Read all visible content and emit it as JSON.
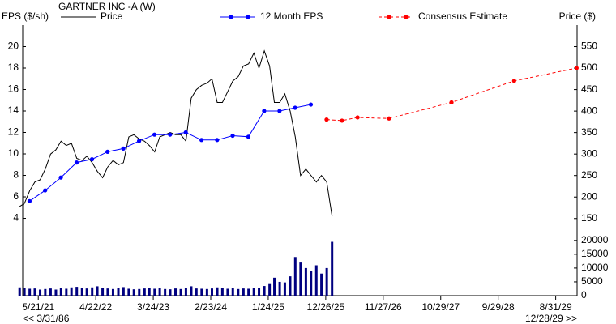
{
  "chart_data": {
    "type": "stock",
    "title": "GARTNER INC -A (W)",
    "y_label": "EPS ($/sh)",
    "y2_label": "Price ($)",
    "start_label": "<< 3/31/86",
    "end_label": "12/28/29 >>",
    "xlim": [
      "2021-02-19",
      "2030-01-03"
    ],
    "xticks": [
      {
        "value": "2021-05-21",
        "label": "5/21/21"
      },
      {
        "value": "2022-04-22",
        "label": "4/22/22"
      },
      {
        "value": "2023-03-24",
        "label": "3/24/23"
      },
      {
        "value": "2024-02-23",
        "label": "2/23/24"
      },
      {
        "value": "2025-01-24",
        "label": "1/24/25"
      },
      {
        "value": "2025-12-26",
        "label": "12/26/25"
      },
      {
        "value": "2026-11-27",
        "label": "11/27/26"
      },
      {
        "value": "2027-10-29",
        "label": "10/29/27"
      },
      {
        "value": "2028-09-29",
        "label": "9/29/28"
      },
      {
        "value": "2029-08-31",
        "label": "8/31/29"
      }
    ],
    "ylim": [
      2.5,
      22
    ],
    "yticks": [
      4,
      6,
      8,
      10,
      12,
      14,
      16,
      18,
      20
    ],
    "y2lim": [
      113,
      600
    ],
    "y2ticks": [
      150,
      200,
      250,
      300,
      350,
      400,
      450,
      500,
      550
    ],
    "y3lim": [
      0,
      22000
    ],
    "y3ticks": [
      0,
      5000,
      10000,
      15000,
      20000
    ],
    "series": [
      {
        "name": "Price",
        "color": "#000000",
        "axis": "y2",
        "style": "line",
        "x": [
          "2021-02-01",
          "2021-03-01",
          "2021-04-01",
          "2021-05-01",
          "2021-06-01",
          "2021-07-01",
          "2021-08-01",
          "2021-09-01",
          "2021-10-01",
          "2021-11-01",
          "2021-12-01",
          "2022-01-01",
          "2022-02-01",
          "2022-03-01",
          "2022-04-01",
          "2022-05-01",
          "2022-06-01",
          "2022-07-01",
          "2022-08-01",
          "2022-09-01",
          "2022-10-01",
          "2022-11-01",
          "2022-12-01",
          "2023-01-01",
          "2023-02-01",
          "2023-03-01",
          "2023-04-01",
          "2023-05-01",
          "2023-06-01",
          "2023-07-01",
          "2023-08-01",
          "2023-09-01",
          "2023-10-01",
          "2023-11-01",
          "2023-12-01",
          "2024-01-01",
          "2024-02-01",
          "2024-03-01",
          "2024-04-01",
          "2024-05-01",
          "2024-06-01",
          "2024-07-01",
          "2024-08-01",
          "2024-09-01",
          "2024-10-01",
          "2024-11-01",
          "2024-12-01",
          "2025-01-01",
          "2025-02-01",
          "2025-03-01",
          "2025-04-01",
          "2025-05-01",
          "2025-06-01",
          "2025-07-01",
          "2025-08-01",
          "2025-09-01",
          "2025-10-01",
          "2025-11-01",
          "2025-12-01",
          "2026-01-01",
          "2026-02-01"
        ],
        "values": [
          178,
          185,
          215,
          235,
          240,
          265,
          300,
          310,
          330,
          320,
          325,
          290,
          285,
          295,
          280,
          260,
          245,
          270,
          285,
          275,
          280,
          340,
          345,
          335,
          330,
          320,
          305,
          340,
          345,
          350,
          345,
          345,
          330,
          430,
          450,
          460,
          465,
          475,
          420,
          420,
          445,
          470,
          480,
          505,
          510,
          535,
          500,
          540,
          505,
          420,
          420,
          440,
          400,
          340,
          250,
          265,
          250,
          235,
          250,
          235,
          155
        ]
      },
      {
        "name": "12 Month EPS",
        "color": "#0000ff",
        "style": "dots",
        "x": [
          "2021-03-31",
          "2021-06-30",
          "2021-09-30",
          "2021-12-31",
          "2022-03-31",
          "2022-06-30",
          "2022-09-30",
          "2022-12-31",
          "2023-03-31",
          "2023-06-30",
          "2023-09-30",
          "2023-12-31",
          "2024-03-31",
          "2024-06-30",
          "2024-09-30",
          "2024-12-31",
          "2025-03-31",
          "2025-06-30",
          "2025-09-30"
        ],
        "values": [
          5.6,
          6.6,
          7.8,
          9.2,
          9.5,
          10.2,
          10.5,
          11.2,
          11.8,
          11.8,
          12.0,
          11.3,
          11.3,
          11.7,
          11.6,
          14.0,
          14.0,
          14.3,
          14.6
        ]
      },
      {
        "name": "Consensus Estimate",
        "color": "#ff0000",
        "style": "dashed",
        "x": [
          "2025-12-31",
          "2026-03-31",
          "2026-06-30",
          "2026-12-31",
          "2027-12-31",
          "2028-12-31",
          "2029-12-31"
        ],
        "values": [
          13.2,
          13.1,
          13.4,
          13.3,
          14.8,
          16.8,
          18.0
        ]
      }
    ],
    "volume": {
      "color": "#000080",
      "values": [
        3000,
        2800,
        2500,
        2600,
        2200,
        2400,
        2600,
        2200,
        2800,
        2500,
        3000,
        3200,
        2800,
        2600,
        3000,
        3400,
        2900,
        2600,
        2400,
        2700,
        3100,
        2500,
        2300,
        2400,
        2600,
        2800,
        2500,
        2900,
        2400,
        2300,
        2600,
        2400,
        2800,
        3400,
        2600,
        2500,
        2400,
        2600,
        3000,
        2800,
        2500,
        2700,
        2400,
        2600,
        2500,
        2800,
        2700,
        3500,
        4200,
        6500,
        5000,
        4800,
        7000,
        14000,
        12000,
        10000,
        9000,
        11000,
        8000,
        10000,
        19500
      ]
    }
  }
}
